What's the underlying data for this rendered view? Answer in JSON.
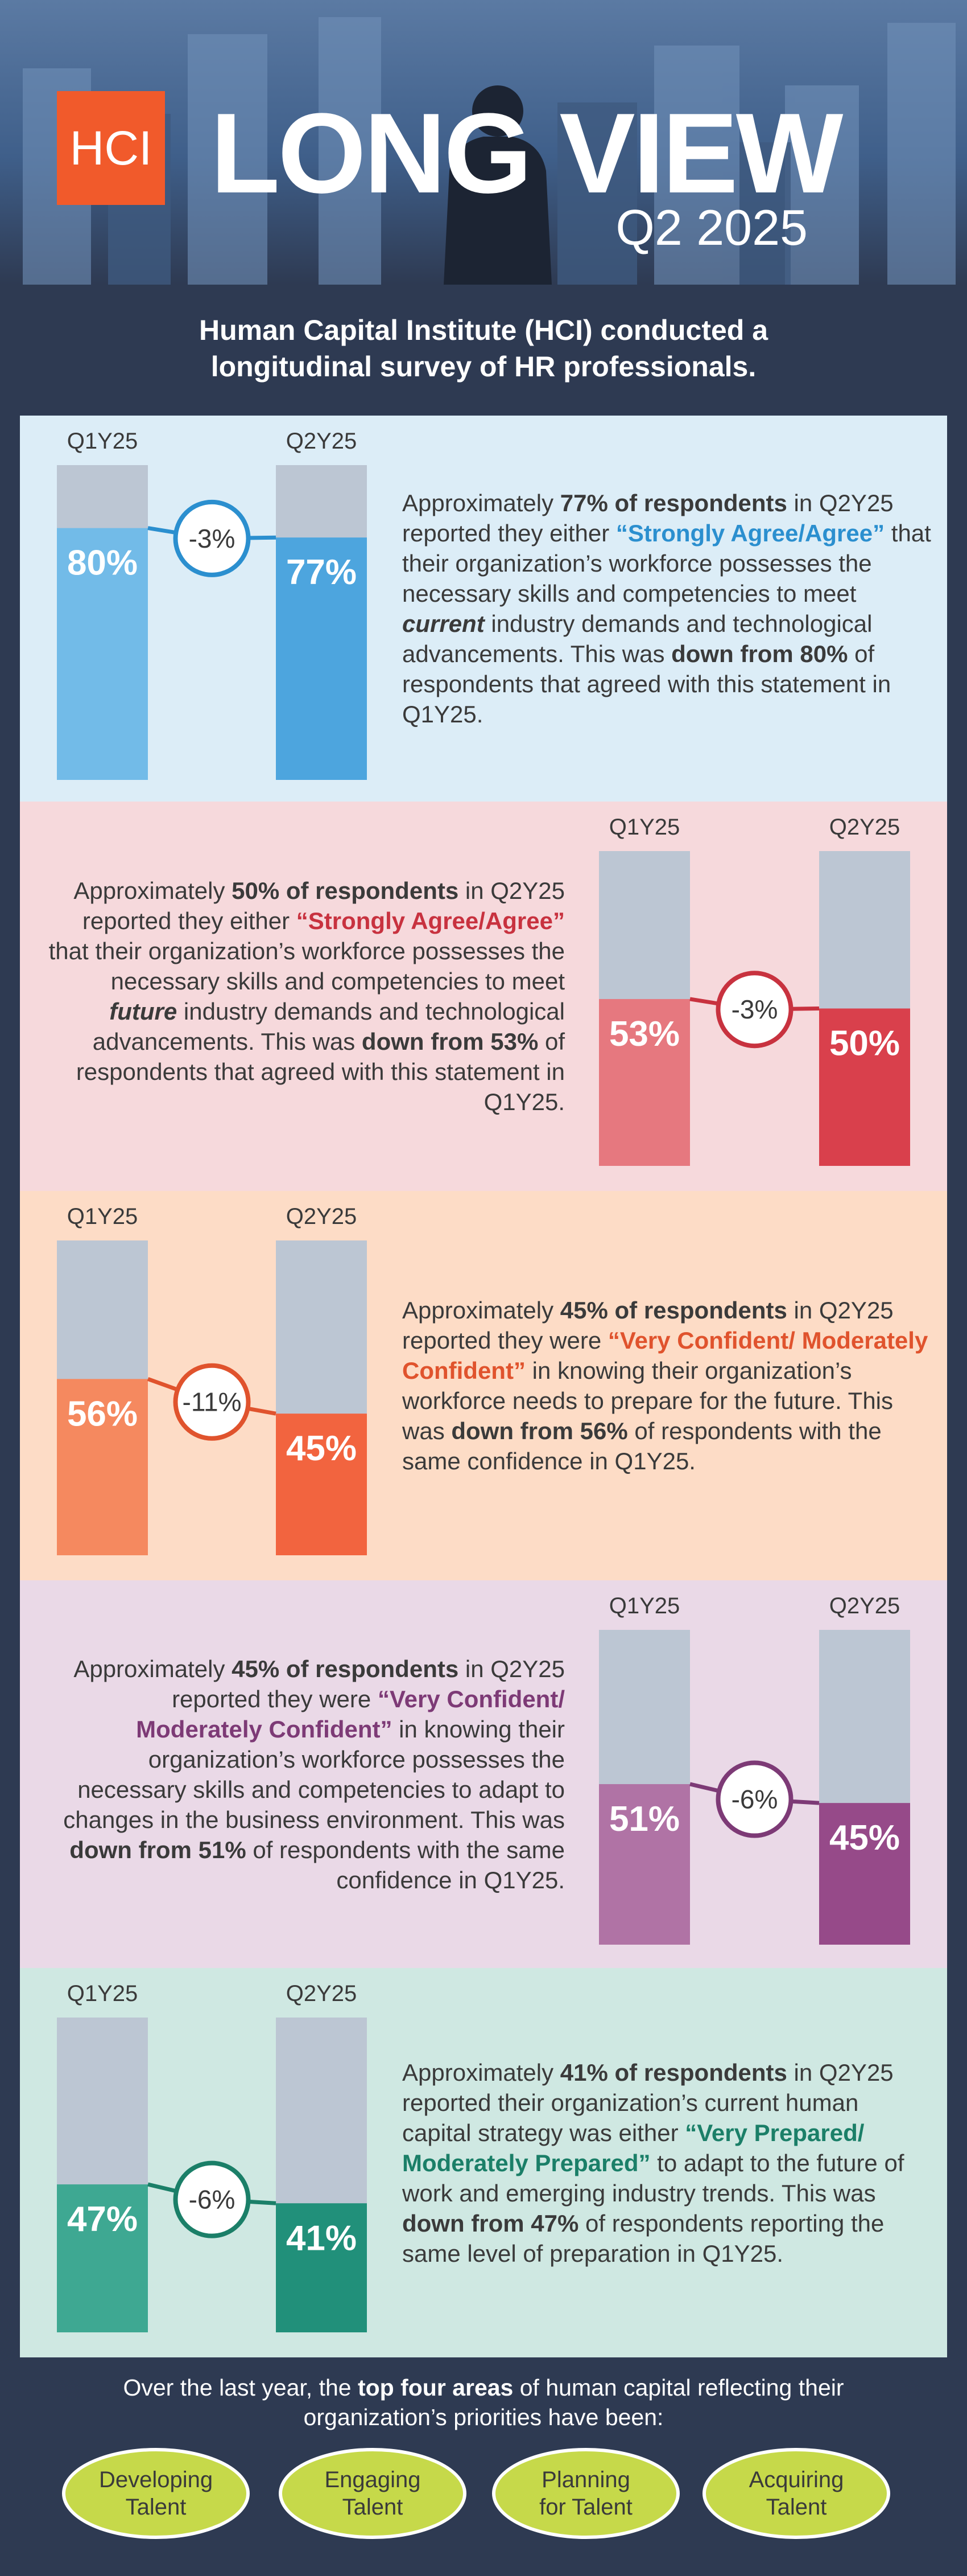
{
  "header": {
    "logo": "HCI",
    "title": "LONG VIEW",
    "subtitle": "Q2 2025"
  },
  "intro": "Human Capital Institute (HCI) conducted a longitudinal survey of HR professionals.",
  "chart_data": [
    {
      "type": "bar",
      "categories": [
        "Q1Y25",
        "Q2Y25"
      ],
      "values": [
        80,
        77
      ],
      "value_labels": [
        "80%",
        "77%"
      ],
      "change": "-3%",
      "ylim": [
        0,
        100
      ],
      "colors": [
        "#72bbe8",
        "#4da5de"
      ],
      "accent": "#2b8fcf",
      "background": "#dcedf7",
      "track": "#bcc6d3",
      "text": [
        {
          "text": "Approximately "
        },
        {
          "text": "77% of respondents",
          "style": "bold"
        },
        {
          "text": " in Q2Y25 reported they either "
        },
        {
          "text": "“Strongly Agree/Agree”",
          "style": "accent"
        },
        {
          "text": " that their organization’s workforce possesses the necessary skills and competencies to meet "
        },
        {
          "text": "current",
          "style": "bold-italic"
        },
        {
          "text": " industry demands and technological advancements. This was "
        },
        {
          "text": "down from 80%",
          "style": "bold"
        },
        {
          "text": " of respondents that agreed with this statement in Q1Y25."
        }
      ]
    },
    {
      "type": "bar",
      "categories": [
        "Q1Y25",
        "Q2Y25"
      ],
      "values": [
        53,
        50
      ],
      "value_labels": [
        "53%",
        "50%"
      ],
      "change": "-3%",
      "ylim": [
        0,
        100
      ],
      "colors": [
        "#e6787f",
        "#d9404c"
      ],
      "accent": "#c8323f",
      "background": "#f6d9dc",
      "track": "#bcc6d3",
      "text": [
        {
          "text": "Approximately "
        },
        {
          "text": "50% of respondents",
          "style": "bold"
        },
        {
          "text": " in Q2Y25 reported they either "
        },
        {
          "text": "“Strongly Agree/Agree”",
          "style": "accent"
        },
        {
          "text": " that their organization’s workforce possesses the necessary skills and competencies to meet "
        },
        {
          "text": "future",
          "style": "bold-italic"
        },
        {
          "text": " industry demands and technological advancements. This was "
        },
        {
          "text": "down from 53%",
          "style": "bold"
        },
        {
          "text": " of respondents that agreed with this statement in Q1Y25."
        }
      ]
    },
    {
      "type": "bar",
      "categories": [
        "Q1Y25",
        "Q2Y25"
      ],
      "values": [
        56,
        45
      ],
      "value_labels": [
        "56%",
        "45%"
      ],
      "change": "-11%",
      "ylim": [
        0,
        100
      ],
      "colors": [
        "#f5895f",
        "#f2643f"
      ],
      "accent": "#e0532d",
      "background": "#fddcc6",
      "track": "#bcc6d3",
      "text": [
        {
          "text": "Approximately "
        },
        {
          "text": "45% of respondents",
          "style": "bold"
        },
        {
          "text": " in Q2Y25 reported they were "
        },
        {
          "text": "“Very Confident/ Moderately Confident”",
          "style": "accent"
        },
        {
          "text": " in knowing their organization’s workforce needs to prepare for the future. This was "
        },
        {
          "text": "down from 56%",
          "style": "bold"
        },
        {
          "text": " of respondents with the same confidence in Q1Y25."
        }
      ]
    },
    {
      "type": "bar",
      "categories": [
        "Q1Y25",
        "Q2Y25"
      ],
      "values": [
        51,
        45
      ],
      "value_labels": [
        "51%",
        "45%"
      ],
      "change": "-6%",
      "ylim": [
        0,
        100
      ],
      "colors": [
        "#b073a5",
        "#964a89"
      ],
      "accent": "#7d3a76",
      "background": "#ead9e7",
      "track": "#bcc6d3",
      "text": [
        {
          "text": "Approximately "
        },
        {
          "text": "45% of respondents",
          "style": "bold"
        },
        {
          "text": " in Q2Y25 reported they were "
        },
        {
          "text": "“Very Confident/ Moderately Confident”",
          "style": "accent"
        },
        {
          "text": " in knowing their organization’s workforce possesses the necessary skills and competencies to adapt to changes in the business environment. This was "
        },
        {
          "text": "down from 51%",
          "style": "bold"
        },
        {
          "text": " of respondents with the same confidence in Q1Y25."
        }
      ]
    },
    {
      "type": "bar",
      "categories": [
        "Q1Y25",
        "Q2Y25"
      ],
      "values": [
        47,
        41
      ],
      "value_labels": [
        "47%",
        "41%"
      ],
      "change": "-6%",
      "ylim": [
        0,
        100
      ],
      "colors": [
        "#3ea892",
        "#21907a"
      ],
      "accent": "#1b7f68",
      "background": "#cfe8e2",
      "track": "#bcc6d3",
      "text": [
        {
          "text": "Approximately "
        },
        {
          "text": "41% of respondents",
          "style": "bold"
        },
        {
          "text": " in Q2Y25 reported their organization’s current human capital strategy was either "
        },
        {
          "text": "“Very Prepared/ Moderately Prepared”",
          "style": "accent"
        },
        {
          "text": " to adapt to the future of work and emerging industry trends. This was "
        },
        {
          "text": "down from 47%",
          "style": "bold"
        },
        {
          "text": " of respondents reporting the same level of preparation in Q1Y25."
        }
      ]
    }
  ],
  "footer": {
    "text": [
      {
        "text": "Over the last year, the "
      },
      {
        "text": "top four areas",
        "style": "bold"
      },
      {
        "text": " of human capital reflecting their organization’s priorities have been:"
      }
    ],
    "areas": [
      "Developing Talent",
      "Engaging Talent",
      "Planning for Talent",
      "Acquiring Talent"
    ]
  }
}
